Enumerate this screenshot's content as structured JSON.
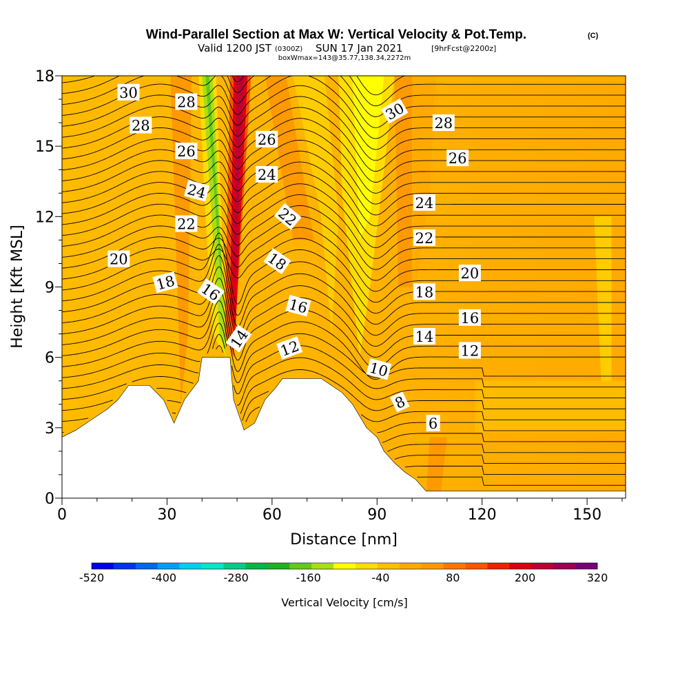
{
  "header": {
    "title": "Wind-Parallel Section at Max W: Vertical Velocity & Pot.Temp.",
    "copyright_mark": "(C)",
    "valid_prefix": "Valid 1200 JST",
    "valid_utc": "(0300Z)",
    "valid_date": "SUN 17 Jan 2021",
    "forecast_note": "[9hrFcst@2200z]",
    "box_info": "boxWmax=143@35.77,138.34,2272m"
  },
  "chart_data": {
    "type": "heatmap",
    "xlabel": "Distance [nm]",
    "ylabel": "Height [Kft MSL]",
    "xlim": [
      0,
      161
    ],
    "ylim": [
      0,
      18
    ],
    "x_ticks": [
      "0",
      "30",
      "60",
      "90",
      "120",
      "150"
    ],
    "y_ticks": [
      "0",
      "3",
      "6",
      "9",
      "12",
      "15",
      "18"
    ],
    "colorbar": {
      "label": "Vertical Velocity [cm/s]",
      "tick_labels": [
        "-520",
        "-400",
        "-280",
        "-160",
        "-40",
        "80",
        "200",
        "320"
      ],
      "colors": [
        "#0000ee",
        "#0033ee",
        "#0066f0",
        "#00a0f0",
        "#00d0f0",
        "#00e8c8",
        "#00cc88",
        "#00b844",
        "#22b022",
        "#66c81a",
        "#a8de14",
        "#ffff00",
        "#ffdd00",
        "#ffc000",
        "#ffaa00",
        "#ff9900",
        "#ff7700",
        "#ff5500",
        "#ee2200",
        "#dd0011",
        "#bb0033",
        "#990055",
        "#770077"
      ]
    },
    "fill_regions": [
      {
        "name": "ascent core",
        "x_range": [
          47,
          56
        ],
        "value_range": "160-200"
      },
      {
        "name": "descent band",
        "x_range": [
          40,
          46
        ],
        "value_range": "-200 to -120"
      },
      {
        "name": "weak descent",
        "x_range": [
          82,
          95
        ],
        "value_range": "-80 to -40"
      }
    ],
    "terrain_profile": [
      [
        0,
        2.6
      ],
      [
        4,
        2.9
      ],
      [
        7,
        3.2
      ],
      [
        10,
        3.5
      ],
      [
        13,
        3.8
      ],
      [
        16,
        4.2
      ],
      [
        19,
        4.8
      ],
      [
        25,
        4.8
      ],
      [
        29,
        4.2
      ],
      [
        32,
        3.2
      ],
      [
        35,
        4.2
      ],
      [
        39,
        5.0
      ],
      [
        40,
        6.0
      ],
      [
        48,
        6.0
      ],
      [
        49,
        4.2
      ],
      [
        52,
        2.9
      ],
      [
        55,
        3.2
      ],
      [
        58,
        4.2
      ],
      [
        61,
        4.7
      ],
      [
        63,
        5.1
      ],
      [
        74,
        5.1
      ],
      [
        77,
        4.8
      ],
      [
        80,
        4.5
      ],
      [
        83,
        4.0
      ],
      [
        85,
        3.5
      ],
      [
        87,
        3.0
      ],
      [
        90,
        2.6
      ],
      [
        92,
        2.0
      ],
      [
        95,
        1.5
      ],
      [
        98,
        1.1
      ],
      [
        101,
        0.8
      ],
      [
        104,
        0.3
      ],
      [
        161,
        0.3
      ]
    ],
    "contours": {
      "variable": "Potential Temperature",
      "labels": [
        {
          "text": "30",
          "x": 19,
          "y": 17.3,
          "angle": 0
        },
        {
          "text": "28",
          "x": 22.5,
          "y": 15.9,
          "angle": 0
        },
        {
          "text": "28",
          "x": 35.5,
          "y": 16.9,
          "angle": 0
        },
        {
          "text": "26",
          "x": 35.5,
          "y": 14.8,
          "angle": 0
        },
        {
          "text": "24",
          "x": 38.5,
          "y": 13.1,
          "angle": 15
        },
        {
          "text": "22",
          "x": 35.5,
          "y": 11.7,
          "angle": 0
        },
        {
          "text": "20",
          "x": 16.2,
          "y": 10.2,
          "angle": 0
        },
        {
          "text": "18",
          "x": 29.5,
          "y": 9.2,
          "angle": -15
        },
        {
          "text": "16",
          "x": 42.5,
          "y": 8.8,
          "angle": 35
        },
        {
          "text": "14",
          "x": 50.5,
          "y": 6.8,
          "angle": -55
        },
        {
          "text": "26",
          "x": 58.5,
          "y": 15.3,
          "angle": 0
        },
        {
          "text": "24",
          "x": 58.5,
          "y": 13.8,
          "angle": 0
        },
        {
          "text": "22",
          "x": 64.5,
          "y": 12.0,
          "angle": 40
        },
        {
          "text": "18",
          "x": 61.5,
          "y": 10.1,
          "angle": 35
        },
        {
          "text": "16",
          "x": 67.5,
          "y": 8.2,
          "angle": 15
        },
        {
          "text": "12",
          "x": 65,
          "y": 6.4,
          "angle": -20
        },
        {
          "text": "30",
          "x": 95,
          "y": 16.5,
          "angle": -30
        },
        {
          "text": "28",
          "x": 109,
          "y": 16.0,
          "angle": 0
        },
        {
          "text": "26",
          "x": 113,
          "y": 14.5,
          "angle": 0
        },
        {
          "text": "24",
          "x": 103.5,
          "y": 12.6,
          "angle": 0
        },
        {
          "text": "22",
          "x": 103.5,
          "y": 11.1,
          "angle": 0
        },
        {
          "text": "20",
          "x": 116.5,
          "y": 9.6,
          "angle": 0
        },
        {
          "text": "18",
          "x": 103.5,
          "y": 8.8,
          "angle": 0
        },
        {
          "text": "16",
          "x": 116.5,
          "y": 7.7,
          "angle": 0
        },
        {
          "text": "14",
          "x": 103.5,
          "y": 6.9,
          "angle": 0
        },
        {
          "text": "12",
          "x": 116.5,
          "y": 6.3,
          "angle": 0
        },
        {
          "text": "10",
          "x": 90.5,
          "y": 5.5,
          "angle": 15
        },
        {
          "text": "8",
          "x": 96.5,
          "y": 4.1,
          "angle": -25
        },
        {
          "text": "6",
          "x": 106,
          "y": 3.2,
          "angle": 0
        }
      ]
    }
  }
}
